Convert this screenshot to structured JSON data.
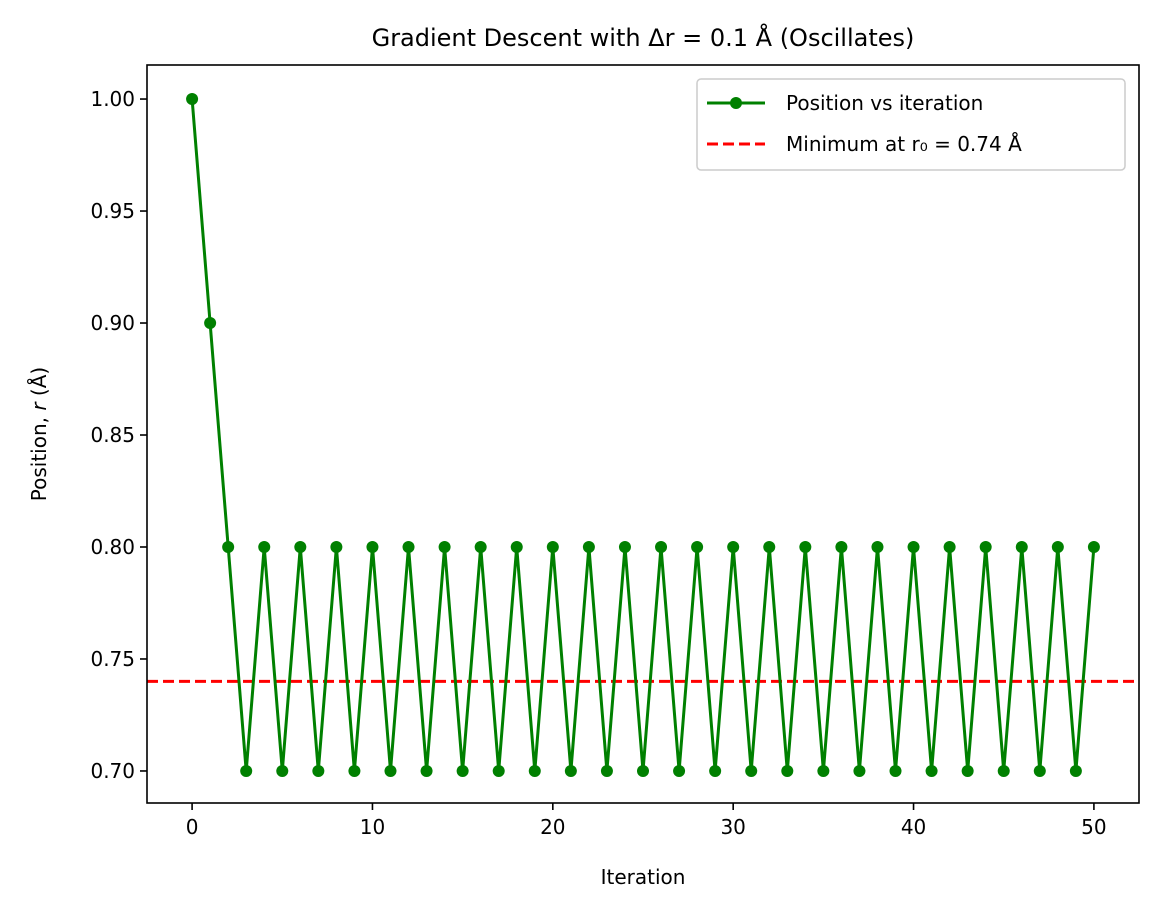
{
  "chart_data": {
    "type": "line",
    "title": "Gradient Descent with Δr = 0.1 Å (Oscillates)",
    "xlabel": "Iteration",
    "ylabel": "Position, r (Å)",
    "ylabel_prefix": "Position, ",
    "ylabel_var": "r",
    "ylabel_suffix": " (Å)",
    "xlim": [
      -2.5,
      52.5
    ],
    "ylim": [
      0.6857,
      1.0152
    ],
    "xticks": [
      0,
      10,
      20,
      30,
      40,
      50
    ],
    "xtick_labels": [
      "0",
      "10",
      "20",
      "30",
      "40",
      "50"
    ],
    "yticks": [
      0.7,
      0.75,
      0.8,
      0.85,
      0.9,
      0.95,
      1.0
    ],
    "ytick_labels": [
      "0.70",
      "0.75",
      "0.80",
      "0.85",
      "0.90",
      "0.95",
      "1.00"
    ],
    "grid": false,
    "legend_position": "top-right",
    "series": [
      {
        "name": "Position vs iteration",
        "color": "#008000",
        "marker": "circle",
        "x": [
          0,
          1,
          2,
          3,
          4,
          5,
          6,
          7,
          8,
          9,
          10,
          11,
          12,
          13,
          14,
          15,
          16,
          17,
          18,
          19,
          20,
          21,
          22,
          23,
          24,
          25,
          26,
          27,
          28,
          29,
          30,
          31,
          32,
          33,
          34,
          35,
          36,
          37,
          38,
          39,
          40,
          41,
          42,
          43,
          44,
          45,
          46,
          47,
          48,
          49,
          50
        ],
        "y": [
          1.0,
          0.9,
          0.8,
          0.7,
          0.8,
          0.7,
          0.8,
          0.7,
          0.8,
          0.7,
          0.8,
          0.7,
          0.8,
          0.7,
          0.8,
          0.7,
          0.8,
          0.7,
          0.8,
          0.7,
          0.8,
          0.7,
          0.8,
          0.7,
          0.8,
          0.7,
          0.8,
          0.7,
          0.8,
          0.7,
          0.8,
          0.7,
          0.8,
          0.7,
          0.8,
          0.7,
          0.8,
          0.7,
          0.8,
          0.7,
          0.8,
          0.7,
          0.8,
          0.7,
          0.8,
          0.7,
          0.8,
          0.7,
          0.8,
          0.7,
          0.8
        ]
      }
    ],
    "hlines": [
      {
        "name": "Minimum at r₀ = 0.74 Å",
        "y": 0.74,
        "color": "#ff0000",
        "style": "dashed"
      }
    ]
  }
}
